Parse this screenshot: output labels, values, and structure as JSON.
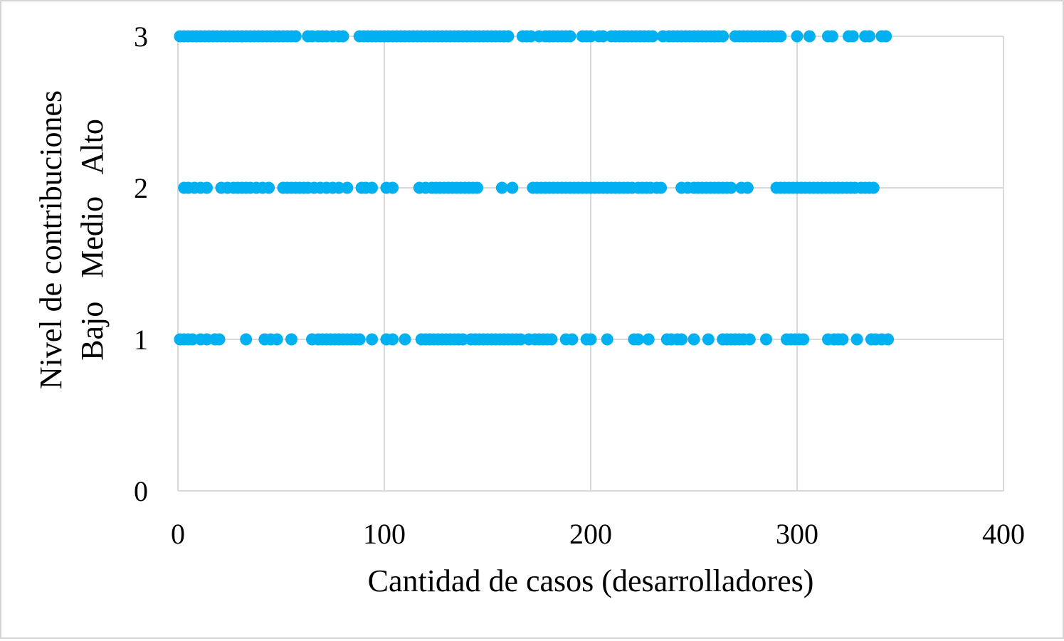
{
  "chart_data": {
    "type": "scatter",
    "title": "",
    "xlabel": "Cantidad de casos (desarrolladores)",
    "ylabel_lines": [
      "Nivel de contribuciones",
      "Bajo   Medio   Alto"
    ],
    "xlim": [
      0,
      400
    ],
    "ylim": [
      0,
      3
    ],
    "x_ticks": [
      0,
      100,
      200,
      300,
      400
    ],
    "y_ticks": [
      0,
      1,
      2,
      3
    ],
    "grid": true,
    "legend": "none",
    "marker_color": "#00b0f0",
    "series": [
      {
        "level": 3,
        "x": [
          1,
          3,
          5,
          7,
          9,
          11,
          13,
          15,
          17,
          19,
          21,
          23,
          25,
          27,
          29,
          31,
          33,
          35,
          37,
          39,
          41,
          43,
          45,
          47,
          49,
          51,
          53,
          55,
          57,
          63,
          65,
          68,
          70,
          72,
          75,
          78,
          80,
          88,
          90,
          92,
          94,
          96,
          98,
          100,
          102,
          104,
          106,
          108,
          110,
          112,
          114,
          116,
          118,
          120,
          122,
          124,
          126,
          128,
          130,
          132,
          134,
          136,
          138,
          140,
          142,
          144,
          146,
          148,
          150,
          152,
          154,
          156,
          158,
          160,
          167,
          169,
          171,
          175,
          178,
          180,
          182,
          184,
          186,
          188,
          190,
          196,
          198,
          200,
          204,
          206,
          210,
          212,
          214,
          216,
          218,
          220,
          222,
          224,
          226,
          228,
          230,
          235,
          238,
          240,
          242,
          244,
          246,
          248,
          250,
          252,
          254,
          256,
          258,
          260,
          262,
          264,
          270,
          272,
          274,
          276,
          278,
          280,
          282,
          284,
          286,
          288,
          290,
          292,
          300,
          306,
          315,
          317,
          325,
          327,
          333,
          335,
          341,
          343
        ]
      },
      {
        "level": 2,
        "x": [
          3,
          5,
          8,
          11,
          14,
          21,
          24,
          27,
          29,
          31,
          33,
          35,
          38,
          41,
          44,
          51,
          53,
          55,
          57,
          59,
          61,
          63,
          66,
          69,
          72,
          75,
          78,
          82,
          89,
          91,
          94,
          101,
          104,
          117,
          120,
          123,
          125,
          127,
          129,
          131,
          133,
          135,
          137,
          139,
          141,
          143,
          145,
          157,
          162,
          172,
          174,
          176,
          178,
          180,
          182,
          184,
          186,
          188,
          190,
          192,
          194,
          196,
          198,
          200,
          202,
          204,
          206,
          208,
          210,
          212,
          214,
          216,
          218,
          220,
          223,
          225,
          227,
          229,
          232,
          234,
          244,
          247,
          250,
          252,
          254,
          256,
          258,
          260,
          262,
          264,
          266,
          268,
          273,
          276,
          290,
          292,
          294,
          296,
          298,
          300,
          302,
          304,
          306,
          308,
          310,
          312,
          314,
          316,
          318,
          320,
          322,
          324,
          326,
          328,
          331,
          333,
          335,
          337
        ]
      },
      {
        "level": 1,
        "x": [
          1,
          3,
          5,
          7,
          11,
          14,
          18,
          20,
          33,
          42,
          45,
          48,
          55,
          65,
          68,
          70,
          72,
          74,
          76,
          78,
          80,
          82,
          84,
          86,
          88,
          94,
          101,
          104,
          110,
          118,
          120,
          122,
          124,
          126,
          128,
          130,
          132,
          134,
          136,
          138,
          142,
          144,
          146,
          148,
          150,
          152,
          154,
          156,
          158,
          160,
          162,
          164,
          166,
          170,
          173,
          175,
          177,
          179,
          181,
          188,
          191,
          198,
          200,
          208,
          221,
          223,
          228,
          237,
          239,
          242,
          244,
          250,
          257,
          264,
          266,
          268,
          270,
          272,
          274,
          277,
          285,
          295,
          297,
          299,
          301,
          303,
          315,
          318,
          320,
          322,
          329,
          336,
          338,
          341,
          344
        ]
      }
    ]
  }
}
